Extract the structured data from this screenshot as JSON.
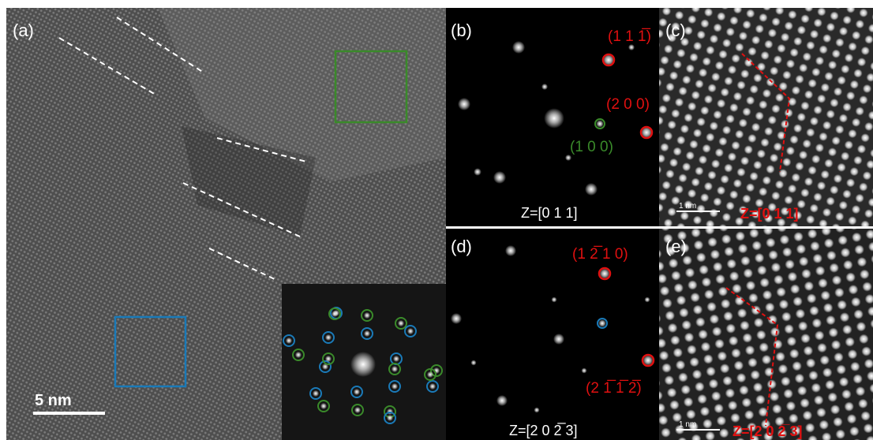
{
  "panels": [
    {
      "label": "(a)",
      "scale_bar": "5 nm"
    },
    {
      "label": "(b)",
      "spots": [
        "(1 1 1̅)",
        "(2 0 0)",
        "(1 0 0)"
      ],
      "zone_axis": "Z=[0 1 1]"
    },
    {
      "label": "(c)",
      "scale_bar": "1 nm",
      "zone_axis": "Z=[0 1 1]"
    },
    {
      "label": "(d)",
      "spots": [
        "(1 2̅ 1 0)",
        "(2 1̅ 1̅ 2̅)"
      ],
      "zone_axis": "Z=[2 0 2̅ 3]"
    },
    {
      "label": "(e)",
      "scale_bar": "1 nm",
      "zone_axis": "Z=[2 0 2̅ 3]"
    }
  ]
}
